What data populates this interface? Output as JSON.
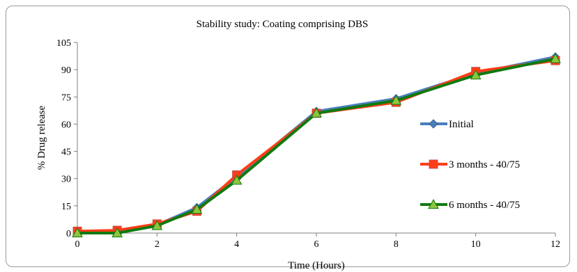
{
  "chart_data": {
    "type": "line",
    "title": "Stability study: Coating comprising DBS",
    "xlabel": "Time (Hours)",
    "ylabel": "% Drug release",
    "xlim": [
      0,
      12
    ],
    "ylim": [
      0,
      105
    ],
    "xticks": [
      0,
      2,
      4,
      6,
      8,
      10,
      12
    ],
    "yticks": [
      0,
      15,
      30,
      45,
      60,
      75,
      90,
      105
    ],
    "grid": false,
    "legend_position": "right",
    "series": [
      {
        "name": "Initial",
        "color": "#4a7ebb",
        "marker": "diamond",
        "x": [
          0,
          1,
          2,
          3,
          4,
          6,
          8,
          10,
          12
        ],
        "y": [
          0.5,
          1,
          4.5,
          14,
          31,
          67,
          74,
          88,
          97
        ]
      },
      {
        "name": "3 months - 40/75",
        "color": "#ff3d17",
        "marker": "square",
        "x": [
          0,
          1,
          2,
          3,
          4,
          6,
          8,
          10,
          12
        ],
        "y": [
          1,
          1.5,
          5,
          12,
          32,
          66,
          72,
          89,
          95
        ]
      },
      {
        "name": "6 months - 40/75",
        "color": "#0f7a0f",
        "marker": "triangle",
        "x": [
          0,
          1,
          2,
          3,
          4,
          6,
          8,
          10,
          12
        ],
        "y": [
          0,
          0,
          4,
          13,
          29,
          66,
          73,
          87,
          96
        ]
      }
    ]
  }
}
